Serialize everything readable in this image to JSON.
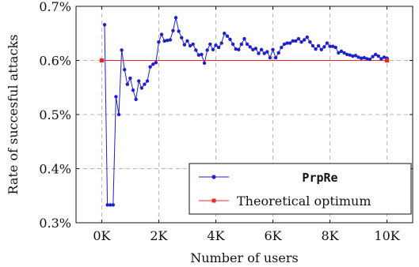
{
  "chart_data": {
    "type": "line",
    "xlabel": "Number of users",
    "ylabel": "Rate of succesful attacks",
    "xlim": [
      -900,
      10900
    ],
    "ylim": [
      0.3,
      0.7
    ],
    "x_ticks": [
      0,
      2000,
      4000,
      6000,
      8000,
      10000
    ],
    "x_tick_labels": [
      "0K",
      "2K",
      "4K",
      "6K",
      "8K",
      "10K"
    ],
    "y_ticks": [
      0.3,
      0.4,
      0.5,
      0.6,
      0.7
    ],
    "y_tick_labels": [
      "0.3%",
      "0.4%",
      "0.5%",
      "0.6%",
      "0.7%"
    ],
    "grid": true,
    "legend_position": "bottom-right",
    "series": [
      {
        "name": "PrpRe",
        "color": "#1f1fd1",
        "marker": "circle",
        "x": [
          100,
          200,
          300,
          400,
          500,
          600,
          700,
          800,
          900,
          1000,
          1100,
          1200,
          1300,
          1400,
          1500,
          1600,
          1700,
          1800,
          1900,
          2000,
          2100,
          2200,
          2300,
          2400,
          2500,
          2600,
          2700,
          2800,
          2900,
          3000,
          3100,
          3200,
          3300,
          3400,
          3500,
          3600,
          3700,
          3800,
          3900,
          4000,
          4100,
          4200,
          4300,
          4400,
          4500,
          4600,
          4700,
          4800,
          4900,
          5000,
          5100,
          5200,
          5300,
          5400,
          5500,
          5600,
          5700,
          5800,
          5900,
          6000,
          6100,
          6200,
          6300,
          6400,
          6500,
          6600,
          6700,
          6800,
          6900,
          7000,
          7100,
          7200,
          7300,
          7400,
          7500,
          7600,
          7700,
          7800,
          7900,
          8000,
          8100,
          8200,
          8300,
          8400,
          8500,
          8600,
          8700,
          8800,
          8900,
          9000,
          9100,
          9200,
          9300,
          9400,
          9500,
          9600,
          9700,
          9800,
          9900,
          10000
        ],
        "y": [
          0.666,
          0.333,
          0.333,
          0.333,
          0.533,
          0.5,
          0.619,
          0.583,
          0.556,
          0.567,
          0.545,
          0.528,
          0.562,
          0.549,
          0.556,
          0.562,
          0.588,
          0.593,
          0.596,
          0.634,
          0.648,
          0.636,
          0.637,
          0.638,
          0.655,
          0.679,
          0.654,
          0.642,
          0.629,
          0.636,
          0.627,
          0.63,
          0.619,
          0.61,
          0.611,
          0.595,
          0.619,
          0.63,
          0.62,
          0.628,
          0.624,
          0.632,
          0.65,
          0.645,
          0.639,
          0.63,
          0.621,
          0.62,
          0.63,
          0.64,
          0.63,
          0.625,
          0.62,
          0.622,
          0.613,
          0.62,
          0.613,
          0.616,
          0.605,
          0.62,
          0.605,
          0.614,
          0.624,
          0.63,
          0.632,
          0.632,
          0.636,
          0.636,
          0.64,
          0.634,
          0.638,
          0.643,
          0.634,
          0.627,
          0.621,
          0.627,
          0.62,
          0.625,
          0.632,
          0.626,
          0.626,
          0.624,
          0.614,
          0.617,
          0.614,
          0.611,
          0.61,
          0.608,
          0.609,
          0.606,
          0.604,
          0.605,
          0.603,
          0.602,
          0.607,
          0.611,
          0.608,
          0.603,
          0.606,
          0.604
        ]
      },
      {
        "name": "Theoretical optimum",
        "color": "#e8262b",
        "marker": "square",
        "x": [
          0,
          10000
        ],
        "y": [
          0.6,
          0.6
        ]
      }
    ]
  }
}
